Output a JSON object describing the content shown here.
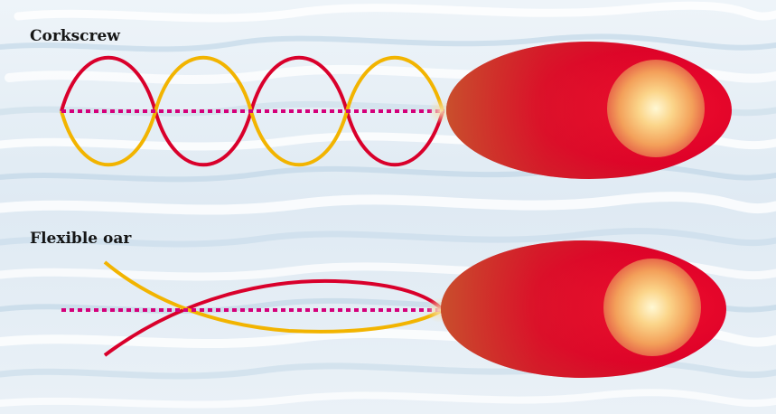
{
  "panels": {
    "corkscrew": {
      "label": "Corkscrew"
    },
    "flexible_oar": {
      "label": "Flexible oar"
    }
  },
  "colors": {
    "cell_body": "#e0002a",
    "cell_body_dark": "#b0001c",
    "nucleus_core": "#fff6c8",
    "nucleus_mid": "#f7b64a",
    "wave_red": "#d9002b",
    "wave_yellow": "#f2b400",
    "axis_magenta": "#d4007a",
    "water_light": "#f4f8fb",
    "water_blue": "#b9d3e6"
  }
}
